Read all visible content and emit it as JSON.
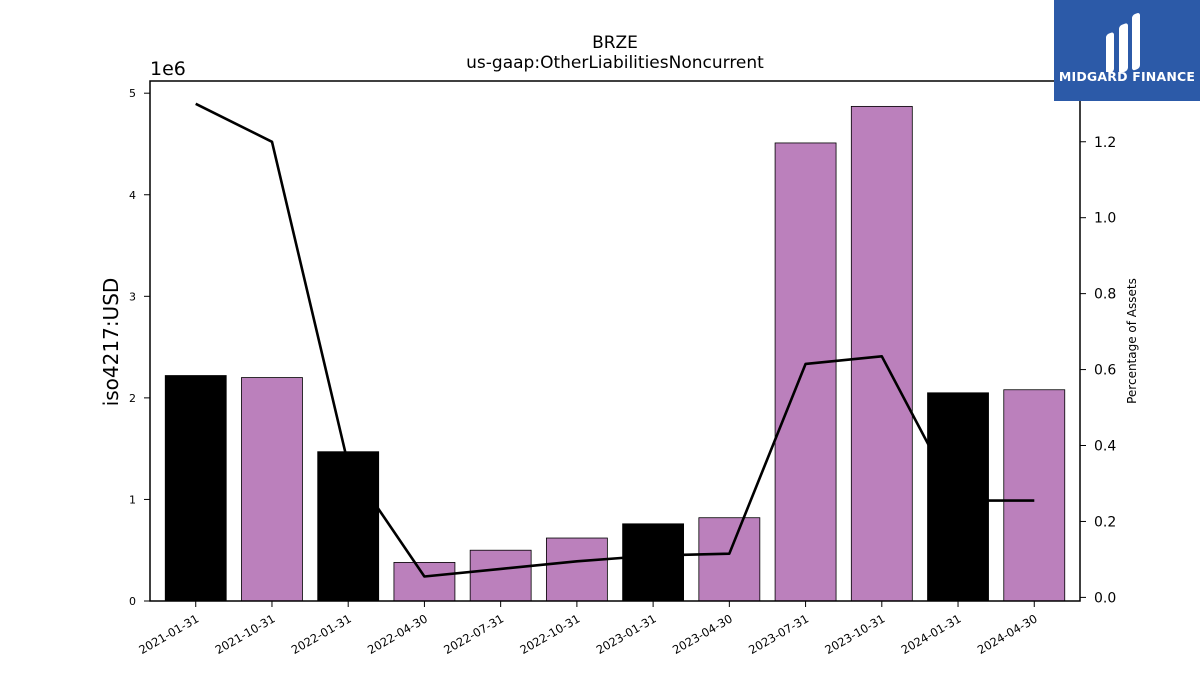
{
  "brand": {
    "name": "MIDGARD FINANCE",
    "logo_color": "#2c5aa8",
    "icon": "midgard-m-icon"
  },
  "chart_data": {
    "type": "bar",
    "title": "BRZE",
    "subtitle": "us-gaap:OtherLiabilitiesNoncurrent",
    "ylabel": "iso4217:USD",
    "y2label": "Percentage of Assets",
    "y_offset_label": "1e6",
    "categories": [
      "2021-01-31",
      "2021-10-31",
      "2022-01-31",
      "2022-04-30",
      "2022-07-31",
      "2022-10-31",
      "2023-01-31",
      "2023-04-30",
      "2023-07-31",
      "2023-10-31",
      "2024-01-31",
      "2024-04-30"
    ],
    "series": [
      {
        "type": "bar",
        "values": [
          2220000,
          2200000,
          1470000,
          380000,
          500000,
          620000,
          760000,
          820000,
          4510000,
          4870000,
          2050000,
          2080000
        ],
        "colors": [
          "#000000",
          "#bb80bc",
          "#000000",
          "#bb80bc",
          "#bb80bc",
          "#bb80bc",
          "#000000",
          "#bb80bc",
          "#bb80bc",
          "#bb80bc",
          "#000000",
          "#bb80bc"
        ]
      },
      {
        "type": "line",
        "axis": "right",
        "color": "#000000",
        "values": [
          1.3,
          1.2,
          0.35,
          0.055,
          0.075,
          0.095,
          0.11,
          0.115,
          0.615,
          0.635,
          0.255,
          0.255
        ]
      }
    ],
    "ylim": [
      0,
      5120000
    ],
    "yticks": [
      0,
      1000000,
      2000000,
      3000000,
      4000000,
      5000000
    ],
    "ytick_labels": [
      "0",
      "1",
      "2",
      "3",
      "4",
      "5"
    ],
    "y2lim": [
      -0.0095,
      1.36
    ],
    "y2ticks": [
      0.0,
      0.2,
      0.4,
      0.6,
      0.8,
      1.0,
      1.2
    ],
    "y2tick_labels": [
      "0.0",
      "0.2",
      "0.4",
      "0.6",
      "0.8",
      "1.0",
      "1.2"
    ],
    "grid": false,
    "legend": "none"
  }
}
